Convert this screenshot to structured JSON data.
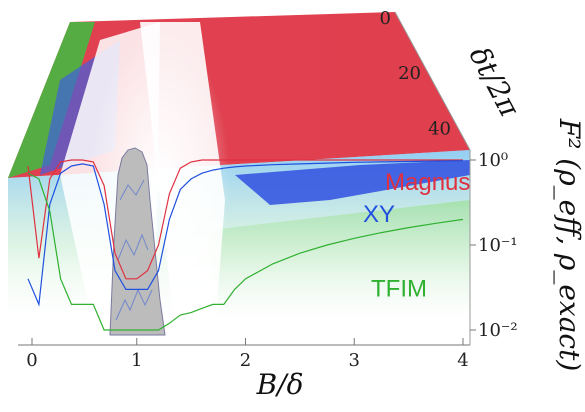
{
  "chart_data": {
    "type": "area",
    "subtype": "3d-surface-with-fidelity-curves",
    "x_axis": {
      "label": "B/δ",
      "range": [
        0,
        4
      ],
      "ticks": [
        "0",
        "1",
        "2",
        "3",
        "4"
      ]
    },
    "depth_axis": {
      "label": "δt/2π",
      "range": [
        0,
        50
      ],
      "ticks": [
        "0",
        "20",
        "40"
      ]
    },
    "z_axis": {
      "label": "F² (ρ_eff, ρ_exact)",
      "scale": "log",
      "range": [
        0.01,
        1
      ],
      "ticks": [
        "10⁰",
        "10⁻¹",
        "10⁻²"
      ]
    },
    "x": [
      0,
      0.1,
      0.2,
      0.3,
      0.4,
      0.5,
      0.6,
      0.7,
      0.8,
      0.9,
      1.0,
      1.1,
      1.2,
      1.3,
      1.4,
      1.5,
      1.6,
      1.7,
      1.8,
      1.9,
      2.0,
      2.25,
      2.5,
      2.75,
      3.0,
      3.25,
      3.5,
      3.75,
      4.0
    ],
    "series": [
      {
        "name": "Magnus",
        "color": "#e03040",
        "values": [
          0.85,
          0.07,
          0.6,
          0.95,
          1,
          1,
          0.95,
          0.5,
          0.08,
          0.04,
          0.04,
          0.05,
          0.1,
          0.4,
          0.8,
          0.95,
          1,
          1,
          1,
          1,
          1,
          1,
          1,
          1,
          1,
          1,
          1,
          1,
          1
        ]
      },
      {
        "name": "XY",
        "color": "#2050e0",
        "values": [
          0.04,
          0.02,
          0.3,
          0.7,
          0.85,
          0.9,
          0.85,
          0.3,
          0.05,
          0.03,
          0.03,
          0.03,
          0.05,
          0.2,
          0.45,
          0.6,
          0.7,
          0.76,
          0.8,
          0.83,
          0.85,
          0.88,
          0.9,
          0.92,
          0.94,
          0.95,
          0.96,
          0.97,
          0.98
        ]
      },
      {
        "name": "TFIM",
        "color": "#30b030",
        "values": [
          0.7,
          0.6,
          0.25,
          0.04,
          0.02,
          0.02,
          0.02,
          0.01,
          0.01,
          0.01,
          0.01,
          0.01,
          0.01,
          0.012,
          0.015,
          0.016,
          0.018,
          0.02,
          0.02,
          0.03,
          0.04,
          0.06,
          0.08,
          0.1,
          0.12,
          0.14,
          0.16,
          0.18,
          0.2
        ]
      }
    ],
    "colors": {
      "magnus": "#e03040",
      "xy": "#2050e0",
      "tfim": "#30b030",
      "breakdown": "#bbbbbb"
    }
  }
}
